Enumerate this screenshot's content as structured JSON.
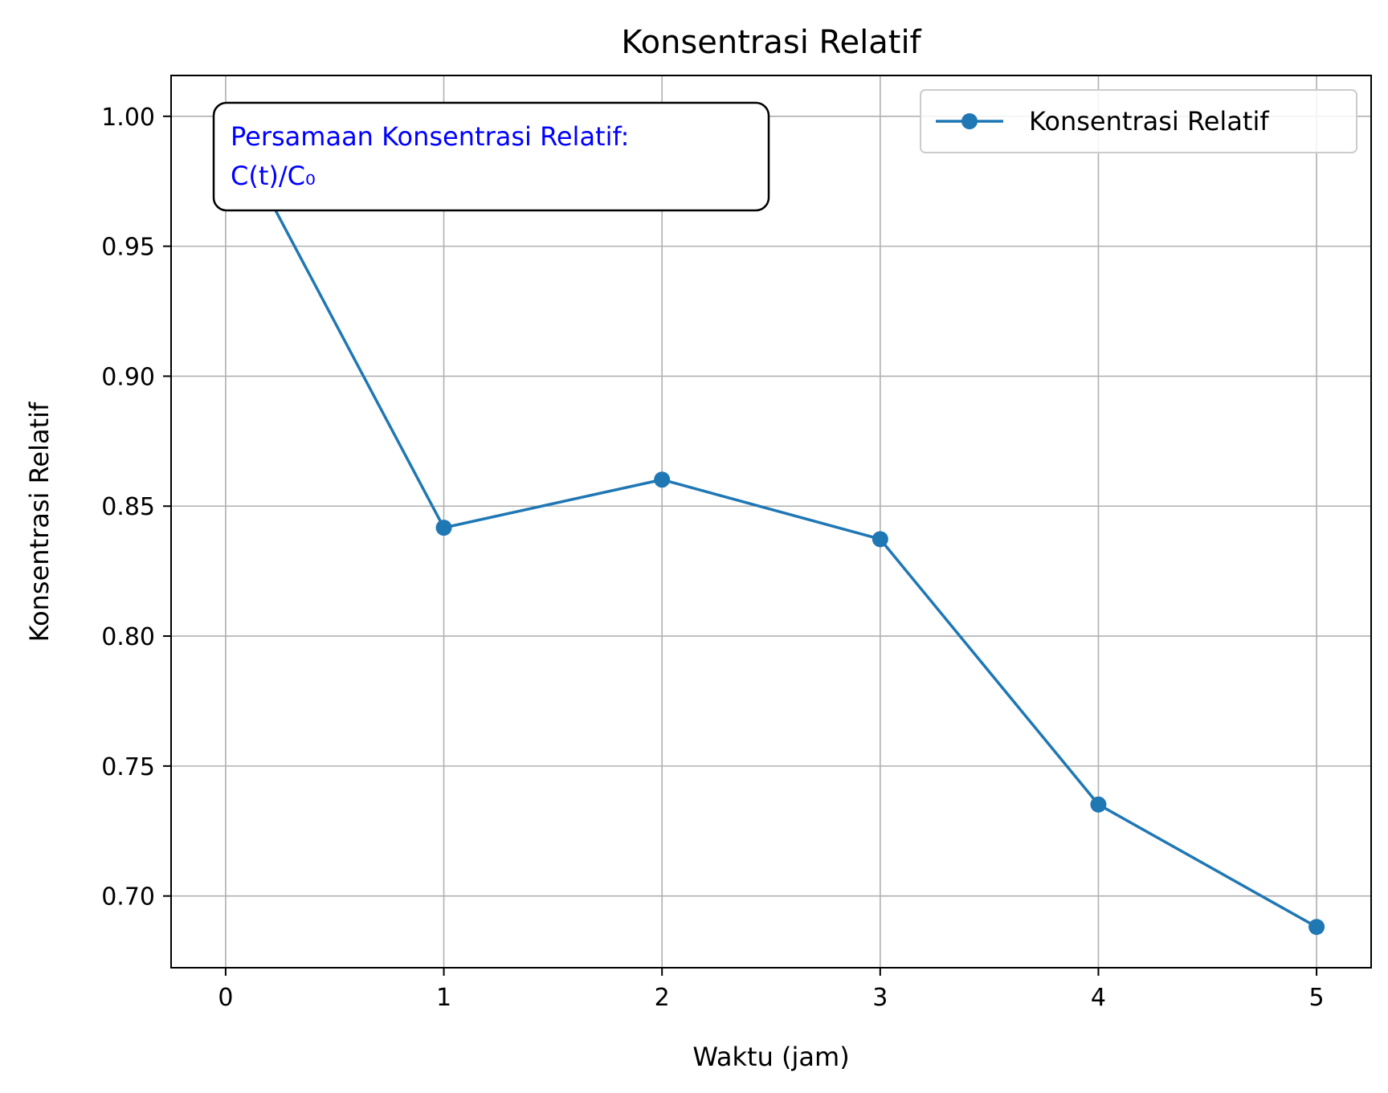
{
  "chart_data": {
    "type": "line",
    "title": "Konsentrasi Relatif",
    "xlabel": "Waktu (jam)",
    "ylabel": "Konsentrasi Relatif",
    "x": [
      0,
      1,
      2,
      3,
      4,
      5
    ],
    "series": [
      {
        "name": "Konsentrasi Relatif",
        "values": [
          1.0,
          0.8417,
          0.8602,
          0.8373,
          0.7352,
          0.6881
        ],
        "color": "#1f77b4",
        "marker": "circle"
      }
    ],
    "xlim": [
      -0.25,
      5.25
    ],
    "ylim": [
      0.6724,
      1.0157
    ],
    "xticks": [
      "0",
      "1",
      "2",
      "3",
      "4",
      "5"
    ],
    "yticks": [
      "0.70",
      "0.75",
      "0.80",
      "0.85",
      "0.90",
      "0.95",
      "1.00"
    ],
    "grid": true,
    "legend_position": "top-right",
    "annotation": {
      "lines": [
        "Persamaan Konsentrasi Relatif:",
        "C(t)/C₀"
      ],
      "color": "#0000ff",
      "position": "top-left"
    }
  }
}
